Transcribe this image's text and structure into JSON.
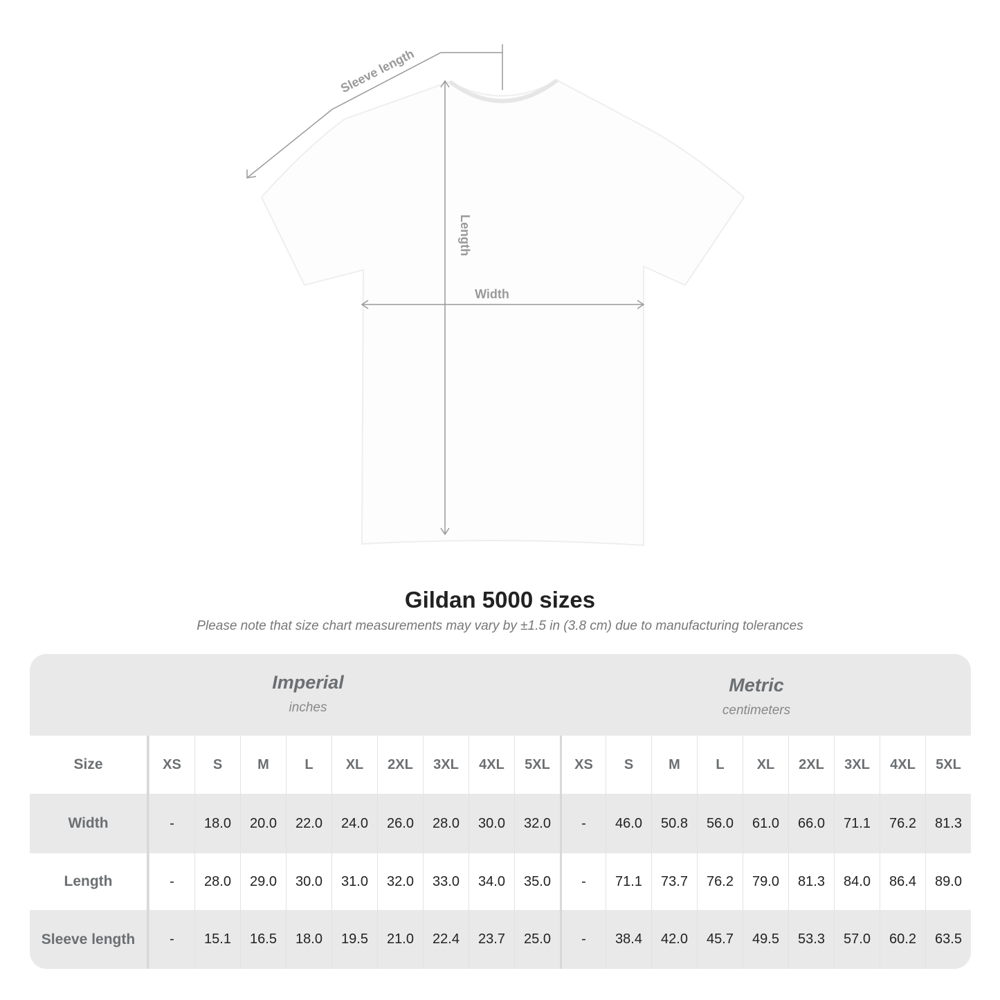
{
  "diagram": {
    "sleeve_label": "Sleeve length",
    "length_label": "Length",
    "width_label": "Width"
  },
  "title": "Gildan 5000 sizes",
  "note": "Please note that size chart measurements may vary by ±1.5 in (3.8 cm) due to manufacturing tolerances",
  "imperial": {
    "name": "Imperial",
    "unit": "inches"
  },
  "metric": {
    "name": "Metric",
    "unit": "centimeters"
  },
  "table": {
    "size_label": "Size",
    "sizes": [
      "XS",
      "S",
      "M",
      "L",
      "XL",
      "2XL",
      "3XL",
      "4XL",
      "5XL"
    ],
    "rows": [
      {
        "label": "Width",
        "imperial": [
          "-",
          "18.0",
          "20.0",
          "22.0",
          "24.0",
          "26.0",
          "28.0",
          "30.0",
          "32.0"
        ],
        "metric": [
          "-",
          "46.0",
          "50.8",
          "56.0",
          "61.0",
          "66.0",
          "71.1",
          "76.2",
          "81.3"
        ]
      },
      {
        "label": "Length",
        "imperial": [
          "-",
          "28.0",
          "29.0",
          "30.0",
          "31.0",
          "32.0",
          "33.0",
          "34.0",
          "35.0"
        ],
        "metric": [
          "-",
          "71.1",
          "73.7",
          "76.2",
          "79.0",
          "81.3",
          "84.0",
          "86.4",
          "89.0"
        ]
      },
      {
        "label": "Sleeve length",
        "imperial": [
          "-",
          "15.1",
          "16.5",
          "18.0",
          "19.5",
          "21.0",
          "22.4",
          "23.7",
          "25.0"
        ],
        "metric": [
          "-",
          "38.4",
          "42.0",
          "45.7",
          "49.5",
          "53.3",
          "57.0",
          "60.2",
          "63.5"
        ]
      }
    ]
  }
}
